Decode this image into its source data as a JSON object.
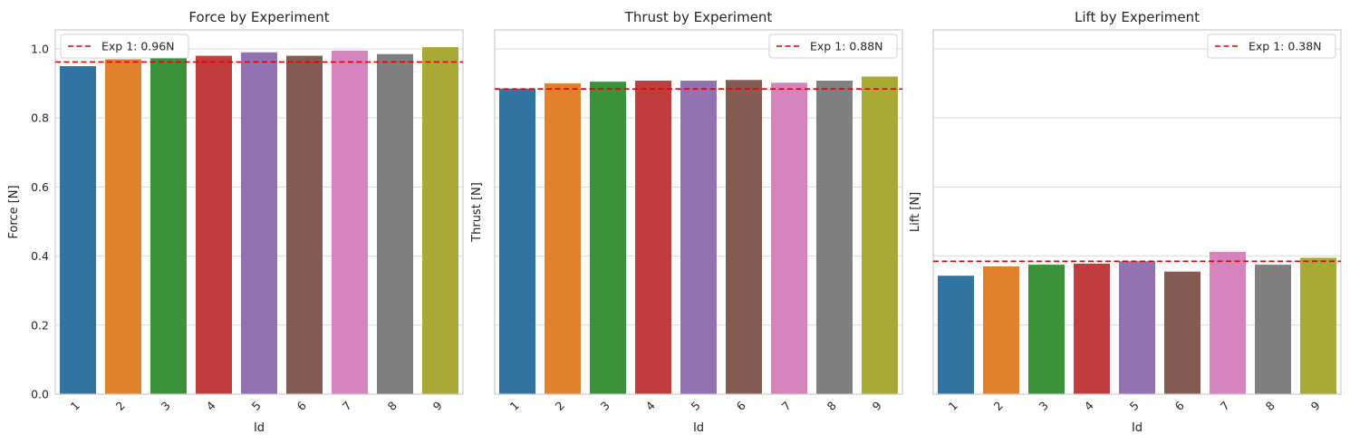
{
  "figure": {
    "panels": [
      {
        "title": "Force by Experiment",
        "xlabel": "Id",
        "ylabel": "Force [N]",
        "legend": "Exp 1: 0.96N"
      },
      {
        "title": "Thrust by Experiment",
        "xlabel": "Id",
        "ylabel": "Thrust [N]",
        "legend": "Exp 1: 0.88N"
      },
      {
        "title": "Lift by Experiment",
        "xlabel": "Id",
        "ylabel": "Lift [N]",
        "legend": "Exp 1: 0.38N"
      }
    ]
  },
  "chart_data": [
    {
      "type": "bar",
      "title": "Force by Experiment",
      "xlabel": "Id",
      "ylabel": "Force [N]",
      "categories": [
        "1",
        "2",
        "3",
        "4",
        "5",
        "6",
        "7",
        "8",
        "9"
      ],
      "values": [
        0.95,
        0.97,
        0.975,
        0.98,
        0.99,
        0.98,
        0.995,
        0.985,
        1.005
      ],
      "ylim": [
        0,
        1.055
      ],
      "yticks": [
        0.0,
        0.2,
        0.4,
        0.6,
        0.8,
        1.0
      ],
      "show_ytick_labels": true,
      "reference_line": {
        "value": 0.962,
        "label": "Exp 1: 0.96N",
        "color": "#e00000",
        "style": "dashed"
      },
      "legend_position": "upper-left",
      "grid": "y"
    },
    {
      "type": "bar",
      "title": "Thrust by Experiment",
      "xlabel": "Id",
      "ylabel": "Thrust [N]",
      "categories": [
        "1",
        "2",
        "3",
        "4",
        "5",
        "6",
        "7",
        "8",
        "9"
      ],
      "values": [
        0.885,
        0.9,
        0.905,
        0.908,
        0.908,
        0.91,
        0.902,
        0.908,
        0.92
      ],
      "ylim": [
        0,
        1.055
      ],
      "yticks": [
        0.0,
        0.2,
        0.4,
        0.6,
        0.8,
        1.0
      ],
      "show_ytick_labels": false,
      "reference_line": {
        "value": 0.884,
        "label": "Exp 1: 0.88N",
        "color": "#e00000",
        "style": "dashed"
      },
      "legend_position": "upper-right",
      "grid": "y"
    },
    {
      "type": "bar",
      "title": "Lift by Experiment",
      "xlabel": "Id",
      "ylabel": "Lift [N]",
      "categories": [
        "1",
        "2",
        "3",
        "4",
        "5",
        "6",
        "7",
        "8",
        "9"
      ],
      "values": [
        0.343,
        0.37,
        0.375,
        0.378,
        0.385,
        0.355,
        0.412,
        0.375,
        0.395
      ],
      "ylim": [
        0,
        1.055
      ],
      "yticks": [
        0.0,
        0.2,
        0.4,
        0.6,
        0.8,
        1.0
      ],
      "show_ytick_labels": false,
      "reference_line": {
        "value": 0.385,
        "label": "Exp 1: 0.38N",
        "color": "#e00000",
        "style": "dashed"
      },
      "legend_position": "upper-right",
      "grid": "y"
    }
  ],
  "colors": {
    "bars": [
      "#3274a1",
      "#e1812c",
      "#3a923a",
      "#c03d3e",
      "#9372b2",
      "#845b53",
      "#d684bd",
      "#7f7f7f",
      "#a9aa35"
    ],
    "grid": "#d9d9d9",
    "spine": "#cccccc",
    "reference": "#e00000"
  }
}
